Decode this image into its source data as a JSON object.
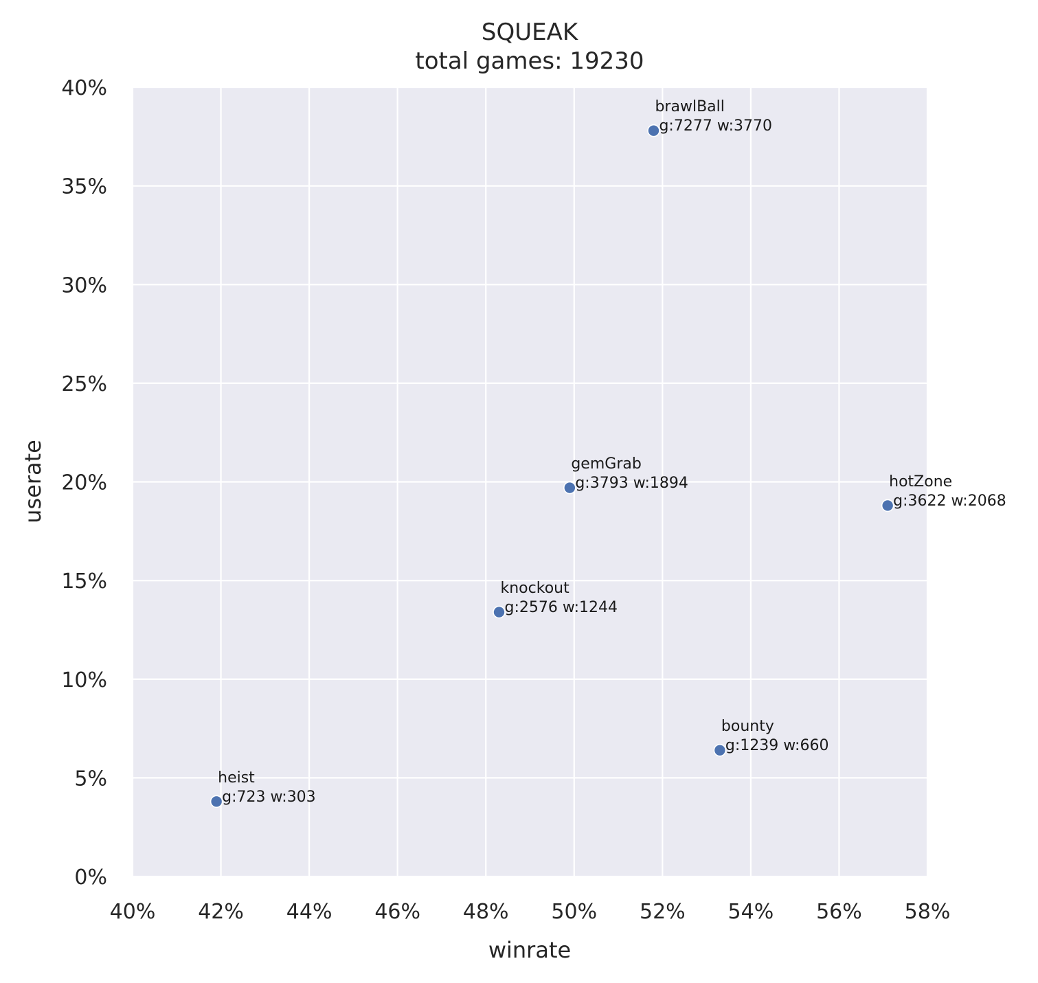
{
  "chart_data": {
    "type": "scatter",
    "title": "SQUEAK",
    "subtitle": "total games: 19230",
    "xlabel": "winrate",
    "ylabel": "userate",
    "xlim": [
      0.4,
      0.58
    ],
    "ylim": [
      0.0,
      0.4
    ],
    "xticks": [
      0.4,
      0.42,
      0.44,
      0.46,
      0.48,
      0.5,
      0.52,
      0.54,
      0.56,
      0.58
    ],
    "yticks": [
      0.0,
      0.05,
      0.1,
      0.15,
      0.2,
      0.25,
      0.3,
      0.35,
      0.4
    ],
    "xtick_labels": [
      "40%",
      "42%",
      "44%",
      "46%",
      "48%",
      "50%",
      "52%",
      "54%",
      "56%",
      "58%"
    ],
    "ytick_labels": [
      "0%",
      "5%",
      "10%",
      "15%",
      "20%",
      "25%",
      "30%",
      "35%",
      "40%"
    ],
    "grid": true,
    "background_color": "#EAEAF2",
    "point_color": "#4C72B0",
    "points": [
      {
        "name": "brawlBall",
        "label": "g:7277 w:3770",
        "x": 0.518,
        "y": 0.378
      },
      {
        "name": "gemGrab",
        "label": "g:3793 w:1894",
        "x": 0.499,
        "y": 0.197
      },
      {
        "name": "hotZone",
        "label": "g:3622 w:2068",
        "x": 0.571,
        "y": 0.188
      },
      {
        "name": "knockout",
        "label": "g:2576 w:1244",
        "x": 0.483,
        "y": 0.134
      },
      {
        "name": "bounty",
        "label": "g:1239 w:660",
        "x": 0.533,
        "y": 0.064
      },
      {
        "name": "heist",
        "label": "g:723 w:303",
        "x": 0.419,
        "y": 0.038
      }
    ]
  }
}
